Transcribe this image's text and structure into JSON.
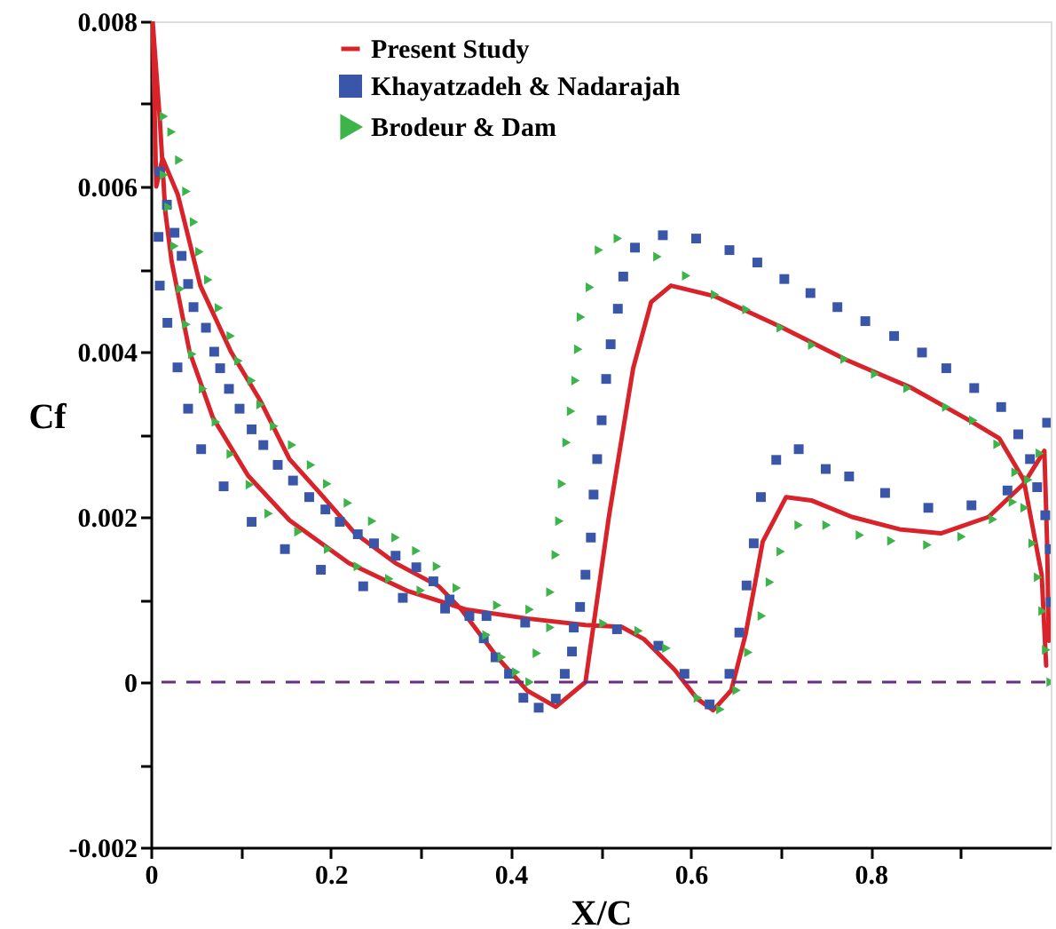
{
  "chart_data": {
    "type": "line",
    "xlabel": "X/C",
    "ylabel": "Cf",
    "xlim": [
      0,
      1
    ],
    "ylim": [
      -0.002,
      0.008
    ],
    "xticks": [
      0,
      {
        "value": 0.1,
        "label": null
      },
      0.2,
      {
        "value": 0.3,
        "label": null
      },
      0.4,
      {
        "value": 0.5,
        "label": null
      },
      0.6,
      {
        "value": 0.7,
        "label": null
      },
      0.8,
      {
        "value": 0.9,
        "label": null
      }
    ],
    "yticks": [
      -0.002,
      {
        "value": -0.001,
        "label": null
      },
      0,
      {
        "value": 0.001,
        "label": null
      },
      0.002,
      {
        "value": 0.003,
        "label": null
      },
      0.004,
      {
        "value": 0.005,
        "label": null
      },
      0.006,
      {
        "value": 0.007,
        "label": null
      },
      0.008
    ],
    "grid": false,
    "legend": "top",
    "ref_lines": [
      {
        "axis": "y",
        "value": 0,
        "color": "#6b2c80",
        "line_style": "dashed"
      }
    ],
    "series": [
      {
        "name": "Present Study",
        "marker": "none",
        "line_style": "solid",
        "color": "#d9232a",
        "x": [
          0.995,
          0.99,
          0.97,
          0.943,
          0.911,
          0.844,
          0.773,
          0.7,
          0.627,
          0.578,
          0.556,
          0.536,
          0.509,
          0.483,
          0.45,
          0.418,
          0.385,
          0.345,
          0.32,
          0.272,
          0.227,
          0.187,
          0.154,
          0.122,
          0.089,
          0.055,
          0.03,
          0.013,
          0.006,
          0.002,
          0.01,
          0.016,
          0.023,
          0.043,
          0.069,
          0.108,
          0.154,
          0.22,
          0.286,
          0.35,
          0.418,
          0.483,
          0.523,
          0.548,
          0.582,
          0.607,
          0.625,
          0.645,
          0.661,
          0.68,
          0.706,
          0.734,
          0.779,
          0.832,
          0.878,
          0.931,
          0.97,
          0.993,
          0.996,
          0.998
        ],
        "values": [
          0.0002,
          0.0013,
          0.00245,
          0.00295,
          0.00316,
          0.00357,
          0.0039,
          0.0043,
          0.00467,
          0.0048,
          0.0046,
          0.0038,
          0.002,
          0,
          -0.0003,
          -0.0001,
          0.0003,
          0.00088,
          0.00116,
          0.00144,
          0.0018,
          0.0023,
          0.0027,
          0.0034,
          0.004,
          0.0048,
          0.0059,
          0.00634,
          0.006,
          0.008,
          0.0068,
          0.0057,
          0.0051,
          0.004,
          0.0032,
          0.0025,
          0.00196,
          0.00144,
          0.0011,
          0.00088,
          0.00077,
          0.00069,
          0.00067,
          0.00052,
          0.00015,
          -0.0002,
          -0.00034,
          -0.0001,
          0.00058,
          0.0017,
          0.00224,
          0.0022,
          0.002,
          0.00185,
          0.0018,
          0.002,
          0.0024,
          0.0028,
          0.0017,
          0.0005
        ]
      },
      {
        "name": "Khayatzadeh & Nadarajah",
        "type": "scatter",
        "marker": "square",
        "color": "#3a56a8",
        "x": [
          0.0099,
          0.0178,
          0.0263,
          0.0342,
          0.0414,
          0.0474,
          0.0612,
          0.0704,
          0.077,
          0.0868,
          0.0986,
          0.112,
          0.125,
          0.141,
          0.158,
          0.176,
          0.194,
          0.21,
          0.23,
          0.248,
          0.272,
          0.295,
          0.314,
          0.332,
          0.354,
          0.37,
          0.383,
          0.398,
          0.414,
          0.431,
          0.45,
          0.46,
          0.468,
          0.477,
          0.483,
          0.489,
          0.492,
          0.496,
          0.501,
          0.506,
          0.511,
          0.519,
          0.525,
          0.538,
          0.569,
          0.606,
          0.643,
          0.674,
          0.704,
          0.733,
          0.763,
          0.794,
          0.826,
          0.857,
          0.884,
          0.915,
          0.945,
          0.964,
          0.996,
          0.977,
          0.985,
          0.994,
          0.999,
          1.0,
          0.0085,
          0.0099,
          0.0184,
          0.0296,
          0.0414,
          0.0559,
          0.0809,
          0.112,
          0.149,
          0.189,
          0.236,
          0.28,
          0.327,
          0.373,
          0.416,
          0.47,
          0.518,
          0.564,
          0.593,
          0.621,
          0.643,
          0.654,
          0.662,
          0.67,
          0.678,
          0.695,
          0.72,
          0.75,
          0.776,
          0.816,
          0.864,
          0.912,
          0.952
        ],
        "values": [
          0.00618,
          0.00578,
          0.00544,
          0.00516,
          0.00482,
          0.00454,
          0.00429,
          0.004,
          0.0038,
          0.00355,
          0.00331,
          0.00306,
          0.00287,
          0.00263,
          0.00244,
          0.00224,
          0.00209,
          0.00194,
          0.00179,
          0.00168,
          0.00153,
          0.00139,
          0.00122,
          0.001,
          0.0008,
          0.00053,
          0.0003,
          0.0001,
          -0.00019,
          -0.00031,
          -0.0002,
          0.0001,
          0.00037,
          0.00091,
          0.0013,
          0.00175,
          0.00227,
          0.0027,
          0.00317,
          0.00367,
          0.00409,
          0.00452,
          0.00491,
          0.00526,
          0.00541,
          0.00537,
          0.00523,
          0.00508,
          0.00488,
          0.00471,
          0.00454,
          0.00437,
          0.00419,
          0.00399,
          0.0038,
          0.00356,
          0.00333,
          0.003,
          0.00314,
          0.0027,
          0.00236,
          0.00202,
          0.00161,
          0.00097,
          0.00539,
          0.0048,
          0.00435,
          0.00381,
          0.00331,
          0.00282,
          0.00237,
          0.00194,
          0.00161,
          0.00136,
          0.00116,
          0.00102,
          0.00089,
          0.0008,
          0.00072,
          0.00066,
          0.00064,
          0.00044,
          0.0001,
          -0.00027,
          0.0001,
          0.0006,
          0.00117,
          0.00168,
          0.00224,
          0.00269,
          0.00282,
          0.00258,
          0.00249,
          0.00229,
          0.00211,
          0.00214,
          0.00232
        ]
      },
      {
        "name": "Brodeur & Dam",
        "type": "scatter",
        "marker": "triangle",
        "color": "#3cb44a",
        "x": [
          0.0145,
          0.023,
          0.0316,
          0.0395,
          0.048,
          0.054,
          0.0638,
          0.0756,
          0.0888,
          0.0973,
          0.112,
          0.122,
          0.137,
          0.157,
          0.178,
          0.196,
          0.219,
          0.246,
          0.272,
          0.295,
          0.318,
          0.34,
          0.373,
          0.39,
          0.406,
          0.421,
          0.429,
          0.444,
          0.45,
          0.454,
          0.457,
          0.462,
          0.467,
          0.472,
          0.475,
          0.478,
          0.488,
          0.498,
          0.519,
          0.563,
          0.595,
          0.627,
          0.662,
          0.7,
          0.735,
          0.771,
          0.805,
          0.841,
          0.884,
          0.914,
          0.941,
          0.961,
          0.975,
          0.988,
          0.971,
          0.98,
          0.986,
          0.991,
          0.995,
          1.0,
          0.0145,
          0.0197,
          0.0263,
          0.0329,
          0.0395,
          0.046,
          0.058,
          0.0723,
          0.0888,
          0.11,
          0.131,
          0.164,
          0.197,
          0.23,
          0.265,
          0.3,
          0.385,
          0.421,
          0.444,
          0.503,
          0.542,
          0.573,
          0.608,
          0.633,
          0.651,
          0.664,
          0.679,
          0.688,
          0.7,
          0.72,
          0.751,
          0.788,
          0.823,
          0.863,
          0.901,
          0.936,
          0.958
        ],
        "values": [
          0.00685,
          0.00666,
          0.00632,
          0.00594,
          0.00557,
          0.00521,
          0.00487,
          0.00453,
          0.00419,
          0.00389,
          0.00365,
          0.00336,
          0.0031,
          0.00287,
          0.00263,
          0.0024,
          0.00217,
          0.00195,
          0.00175,
          0.00159,
          0.0014,
          0.00114,
          0.00057,
          0.0003,
          0.00012,
          0,
          0.00035,
          0.00109,
          0.00154,
          0.00195,
          0.0024,
          0.0029,
          0.00328,
          0.00365,
          0.00403,
          0.00442,
          0.00478,
          0.00523,
          0.00537,
          0.00515,
          0.00492,
          0.00469,
          0.00451,
          0.00429,
          0.00408,
          0.00391,
          0.00373,
          0.00356,
          0.00333,
          0.00317,
          0.00288,
          0.00254,
          0.00245,
          0.00277,
          0.00211,
          0.00168,
          0.00127,
          0.00086,
          0.00039,
          0,
          0.00614,
          0.00575,
          0.00528,
          0.00476,
          0.00433,
          0.00397,
          0.00355,
          0.00315,
          0.00276,
          0.00239,
          0.00204,
          0.00182,
          0.00161,
          0.0014,
          0.00125,
          0.00111,
          0.00093,
          0.00088,
          0.00066,
          0.00071,
          0.00062,
          0.00041,
          -0.00019,
          -0.00033,
          -0.0001,
          0.00036,
          0.0008,
          0.00121,
          0.00158,
          0.0019,
          0.0019,
          0.00178,
          0.00171,
          0.00166,
          0.00176,
          0.00197,
          0.00218
        ]
      }
    ]
  }
}
